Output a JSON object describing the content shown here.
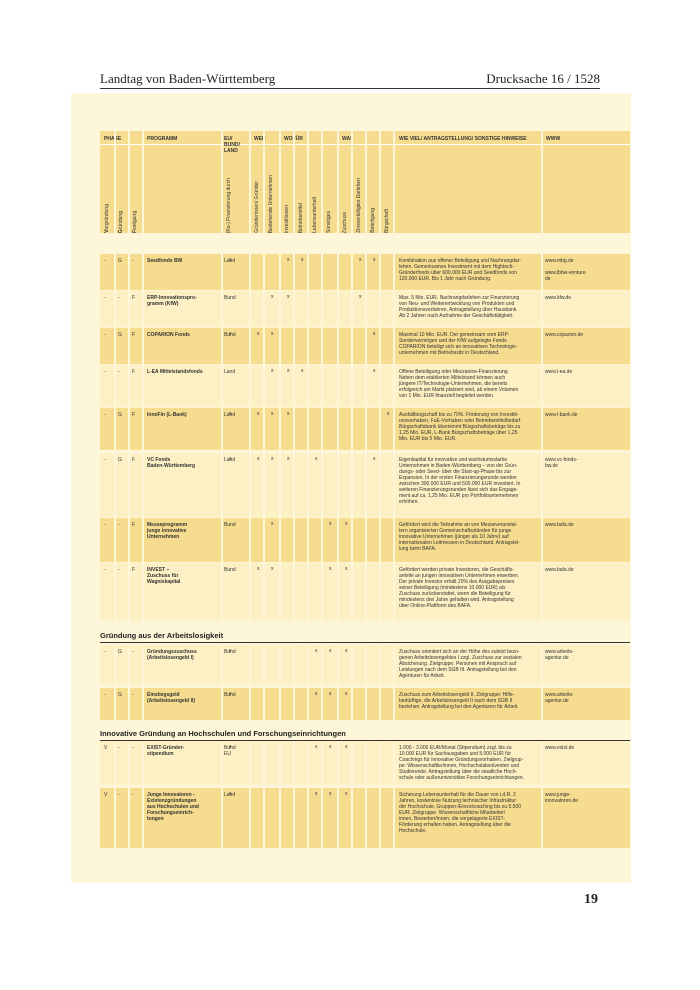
{
  "header": {
    "left": "Landtag von Baden-Württemberg",
    "right": "Drucksache 16 / 1528"
  },
  "page_number": "19",
  "table_header": {
    "phase": "PHASE",
    "programm": "PROGRAMM",
    "land": "EU/ BUND/ LAND",
    "wer": "WER",
    "wofuer": "WOFÜR",
    "was": "WAS",
    "wieviel": "WIE VIEL/ ANTRAGSTELLUNG/ SONSTIGE HINWEISE",
    "www": "WWW",
    "phase_cols": [
      {
        "initial": "V",
        "rest": "orgründung"
      },
      {
        "initial": "G",
        "rest": "ründung"
      },
      {
        "initial": "F",
        "rest": "estigung"
      }
    ],
    "sub_cols": [
      "(Ko-) Finanzierung durch",
      "Gründerinnen/ Gründer",
      "Bestehende Unternehmen",
      "Investitionen",
      "Betriebsmittel",
      "Lebensunterhalt",
      "Sonstiges",
      "Zuschuss",
      "Zinsverbilligtes Darlehen",
      "Beteiligung",
      "Bürgschaft"
    ]
  },
  "sections": {
    "arbeitslosigkeit": "Gründung aus der Arbeitslosigkeit",
    "hochschulen": "Innovative Gründung an Hochschulen und Forschungseinrichtungen"
  },
  "rows": [
    {
      "v": "-",
      "g": "G",
      "f": "-",
      "program": "Seedfonds BW",
      "land": "Land",
      "marks": [
        1,
        0,
        0,
        1,
        1,
        0,
        0,
        0,
        1,
        1,
        0
      ],
      "info": "Kombination aus offener Beteiligung und Nachrangdar-\nlehen. Gemeinsames Investment mit dem Hightech-\nGründerfonds über 600.000 EUR und Seedfonds von\n120.000 EUR. Bis 1 Jahr nach Gründung.",
      "www": "www.mbg.de\n\nwww.lbbw-venture.\nde"
    },
    {
      "v": "-",
      "g": "-",
      "f": "F",
      "program": "ERP-Innovationspro-\ngramm (KfW)",
      "land": "Bund",
      "marks": [
        0,
        0,
        1,
        1,
        0,
        0,
        0,
        0,
        1,
        0,
        0
      ],
      "info": "Max. 5 Mio. EUR. Nachrangdarlehen zur Finanzierung\nvon Neu- und Weiterentwicklung von Produkten und\nProduktionsverfahren. Antragstellung über Hausbank.\nAb 2 Jahren nach Aufnahme der Geschäftstätigkeit.",
      "www": "www.kfw.de"
    },
    {
      "v": "-",
      "g": "G",
      "f": "F",
      "program": "COPARION Fonds",
      "land": "Bund",
      "marks": [
        1,
        1,
        1,
        0,
        0,
        0,
        0,
        0,
        0,
        1,
        0
      ],
      "info": "Maximal 10 Mio. EUR. Der gemeinsam vom ERP-\nSondervermögen und der KfW aufgelegte Fonds\nCOPARION beteiligt sich an innovativen Technologie-\nunternehmen mit Betriebssitz in Deutschland.",
      "www": "www.coparion.de"
    },
    {
      "v": "-",
      "g": "-",
      "f": "F",
      "program": "L-EA Mittelstandsfonds",
      "land": "Land",
      "marks": [
        0,
        0,
        1,
        1,
        1,
        0,
        0,
        0,
        0,
        1,
        0
      ],
      "info": "Offene Beteiligung oder Mezzanine-Finanzierung.\nNeben dem etablierten Mittelstand können auch\njüngere IT/Technologie-Unternehmen, die bereits\nerfolgreich am Markt platziert sind, ab einem Volumen\nvon 1 Mio. EUR finanziell begleitet werden.",
      "www": "www.l-ea.de"
    },
    {
      "v": "-",
      "g": "G",
      "f": "F",
      "program": "InnoFin (L-Bank)",
      "land": "Land",
      "marks": [
        1,
        1,
        1,
        1,
        0,
        0,
        0,
        0,
        0,
        0,
        1
      ],
      "info": "Ausfallbürgschaft bis zu 70%. Förderung von Investiti-\nonsvorhaben, FuE-Vorhaben oder Betriebsmittelbedarf.\nBürgschaftsbank übernimmt Bürgschaftsbeträge bis zu\n1,25 Mio. EUR, L-Bank Bürgschaftsbeträge über 1,25\nMio. EUR bis 5 Mio. EUR.",
      "www": "www.l-bank.de"
    },
    {
      "v": "-",
      "g": "G",
      "f": "F",
      "program": "VC Fonds\nBaden-Württemberg",
      "land": "Land",
      "marks": [
        1,
        1,
        1,
        1,
        0,
        1,
        0,
        0,
        0,
        1,
        0
      ],
      "info": "Eigenkapital für innovative und wachstumsstarke\nUnternehmen in Baden-Württemberg – von der Grün-\ndungs- oder Seed- über die Start-up-Phase bis zur\nExpansion. In der ersten Finanzierungsrunde werden\nzwischen 300.000 EUR und 500.000 EUR investiert. In\nweiteren Finanzierungsrunden lässt sich das Engage-\nment auf ca. 1,25 Mio. EUR pro Portfoliounternehmen\nerhöhen.",
      "www": "www.vc-fonds-\nbw.de"
    },
    {
      "v": "-",
      "g": "-",
      "f": "F",
      "program": "Messeprogramm\njunge innovative\nUnternehmen",
      "land": "Bund",
      "marks": [
        0,
        0,
        1,
        0,
        0,
        0,
        1,
        1,
        0,
        0,
        0
      ],
      "info": "Gefördert wird die Teilnahme an von Messeveranstal-\ntern organisierten Gemeinschaftsständen für junge\ninnovative Unternehmen (jünger als 10 Jahre) auf\ninternationalen Leitmessen in Deutschland. Antragstel-\nlung beim BAFA.",
      "www": "www.bafa.de"
    },
    {
      "v": "-",
      "g": "-",
      "f": "F",
      "program": "INVEST –\nZuschuss für\nWagniskapital",
      "land": "Bund",
      "marks": [
        0,
        1,
        1,
        0,
        0,
        0,
        1,
        1,
        0,
        0,
        0
      ],
      "info": "Gefördert werden private Investoren, die Geschäfts-\nanteile an jungen innovativen Unternehmen erwerben.\nDer private Investor erhält 20% des Ausgabepreises\nseiner Beteiligung (mindestens 10.000 EUR) als\nZuschuss zurückerstattet, wenn die Beteiligung für\nmindestens drei Jahre gehalten wird. Antragstellung\nüber Online-Plattform des BAFA.",
      "www": "www.bafa.de"
    },
    {
      "v": "-",
      "g": "G",
      "f": "-",
      "program": "Gründungszuschuss\n(Arbeitslosengeld I)",
      "land": "Bund",
      "marks": [
        1,
        0,
        0,
        0,
        0,
        1,
        1,
        1,
        0,
        0,
        0
      ],
      "info": "Zuschuss orientiert sich an der Höhe des zuletzt bezo-\ngenen Arbeitslosengeldes I zzgl. Zuschuss zur sozialen\nAbsicherung. Zielgruppe: Personen mit Anspruch auf\nLeistungen nach dem SGB III. Antragstellung bei den\nAgenturen für Arbeit.",
      "www": "www.arbeits-\nagentur.de"
    },
    {
      "v": "-",
      "g": "G",
      "f": "-",
      "program": "Einstiegsgeld\n(Arbeitslosengeld II)",
      "land": "Bund",
      "marks": [
        1,
        0,
        0,
        0,
        0,
        1,
        1,
        1,
        0,
        0,
        0
      ],
      "info": "Zuschuss zum Arbeitslosengeld II. Zielgruppe: Hilfe-\nbedürftige, die Arbeitslosengeld II nach dem SGB II\nbeziehen. Antragstellung bei den Agenturen für Arbeit.",
      "www": "www.arbeits-\nagentur.de"
    },
    {
      "v": "V",
      "g": "-",
      "f": "-",
      "program": "EXIST-Gründer-\nstipendium",
      "land": "Bund\nEU",
      "marks": [
        1,
        0,
        0,
        0,
        0,
        1,
        1,
        1,
        0,
        0,
        0
      ],
      "info": "1.000 - 3.000 EUR/Monat (Stipendium) zzgl. bis zu\n10.000 EUR für Sachausgaben und 5.000 EUR für\nCoachings für innovative Gründungsvorhaben. Zielgrup-\npe: Wissenschaftler/innen, Hochschulabsolventen und\nStudierende. Antragstellung über die staatliche Hoch-\nschule oder außeruniversitäre Forschungseinrichtungen.",
      "www": "www.exist.de"
    },
    {
      "v": "V",
      "g": "-",
      "f": "-",
      "program": "Junge Innovatoren -\nExistenzgründungen\naus Hochschulen und\nForschungseinrich-\ntungen",
      "land": "Land",
      "marks": [
        1,
        0,
        0,
        0,
        0,
        1,
        1,
        1,
        0,
        0,
        0
      ],
      "info": "Sicherung Lebensunterhalt für die Dauer von i.d.R. 2\nJahren, kostenlose Nutzung technischer Infrastruktur\nder Hochschule, Gruppen-/Einzelcoaching bis zu 5.500\nEUR. Zielgruppe: Wissenschaftliche Mitarbeiter/\ninnen, Bewerber/innen, die vorgelagerte EXIST-\nFörderung erhalten haben. Antragstellung über die\nHochschule.",
      "www": "www.junge-\ninnovatoren.de"
    }
  ]
}
